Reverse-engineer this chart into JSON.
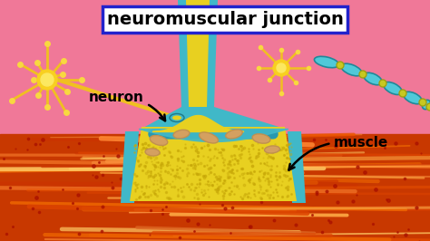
{
  "title": "neuromuscular junction",
  "title_box_color": "#ffffff",
  "title_border_color": "#2222cc",
  "title_fontsize": 14,
  "title_fontweight": "bold",
  "bg_pink": "#f07898",
  "label_neuron": "neuron",
  "label_muscle": "muscle",
  "label_fontsize": 11,
  "label_fontweight": "bold",
  "yellow": "#e8d020",
  "teal": "#40b8c8",
  "teal_dark": "#2898b0",
  "neuron_color": "#f0c020",
  "muscle_red_bg": "#cc3300",
  "nerve_chain_color": "#50c8d8",
  "nerve_connector": "#c8c820",
  "organelle_color": "#d4a060",
  "organelle_edge": "#c09050"
}
